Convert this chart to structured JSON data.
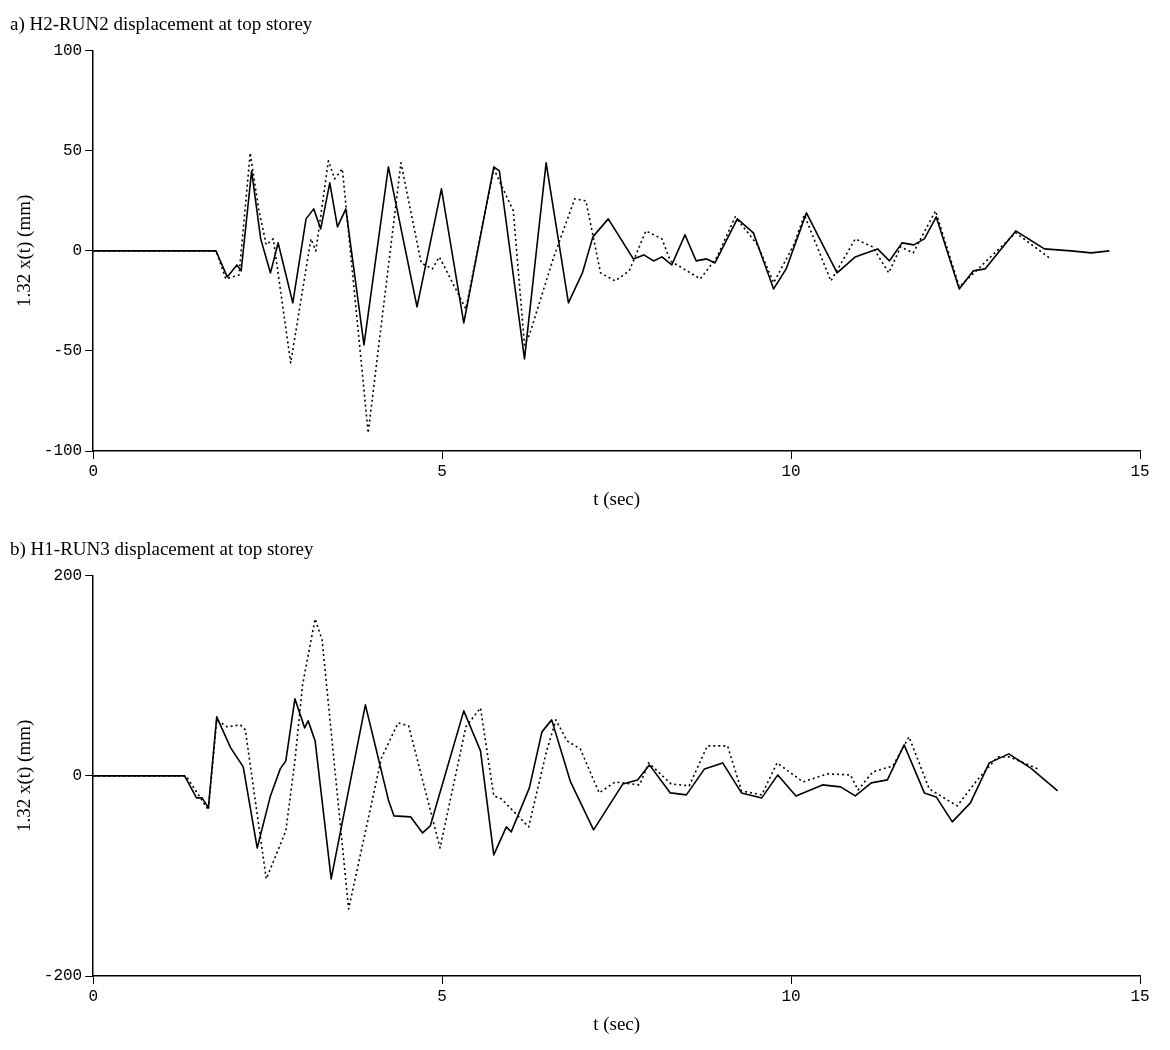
{
  "chart_data": [
    {
      "type": "line",
      "title": "a) H2-RUN2 displacement at top storey",
      "xlabel": "t (sec)",
      "ylabel": "1.32 x(t) (mm)",
      "xlim": [
        0,
        15
      ],
      "xticks": [
        0,
        5,
        10,
        15
      ],
      "ylim": [
        -100,
        100
      ],
      "yticks": [
        -100,
        -50,
        0,
        50,
        100
      ],
      "grid": false,
      "legend": false,
      "marker": "none",
      "series": [
        {
          "color": "#000000",
          "line_style": "solid",
          "x": [
            0,
            0.5,
            1,
            1.5,
            1.76,
            1.92,
            2.06,
            2.12,
            2.27,
            2.4,
            2.54,
            2.65,
            2.86,
            3.05,
            3.16,
            3.26,
            3.39,
            3.5,
            3.62,
            3.88,
            4.23,
            4.64,
            4.99,
            5.31,
            5.74,
            5.82,
            6.18,
            6.49,
            6.81,
            7.01,
            7.16,
            7.38,
            7.74,
            7.89,
            8.03,
            8.15,
            8.29,
            8.48,
            8.64,
            8.79,
            8.91,
            9.23,
            9.46,
            9.75,
            9.93,
            10.22,
            10.66,
            10.92,
            11.24,
            11.41,
            11.59,
            11.76,
            11.91,
            12.08,
            12.41,
            12.61,
            12.78,
            13.22,
            13.63,
            14.01,
            14.3,
            14.56
          ],
          "values": [
            0,
            0,
            0,
            0,
            0,
            -13,
            -7,
            -10,
            40,
            6,
            -11,
            4,
            -26,
            16,
            21,
            11,
            34,
            12,
            21,
            -47,
            42,
            -28,
            31,
            -36,
            42,
            40,
            -54,
            44,
            -26,
            -11,
            7,
            16,
            -4,
            -2,
            -5,
            -3,
            -7,
            8,
            -5,
            -4,
            -6,
            16,
            9,
            -19,
            -9,
            19,
            -11,
            -3,
            1,
            -5,
            4,
            3,
            6,
            17,
            -19,
            -10,
            -9,
            10,
            1,
            0,
            -1,
            0
          ]
        },
        {
          "color": "#000000",
          "line_style": "dotted",
          "x": [
            0,
            1,
            1.76,
            1.9,
            2.09,
            2.25,
            2.37,
            2.48,
            2.58,
            2.83,
            3.12,
            3.19,
            3.37,
            3.46,
            3.57,
            3.94,
            4.41,
            4.7,
            4.86,
            4.96,
            5.34,
            5.74,
            6.02,
            6.18,
            6.25,
            6.6,
            6.9,
            7.06,
            7.27,
            7.48,
            7.68,
            7.92,
            8.15,
            8.27,
            8.7,
            8.94,
            9.2,
            9.52,
            9.75,
            10.04,
            10.19,
            10.57,
            10.92,
            11.17,
            11.4,
            11.57,
            11.75,
            12.07,
            12.41,
            13.22,
            13.72
          ],
          "values": [
            0,
            0,
            0,
            -14,
            -12,
            49,
            21,
            3,
            6,
            -56,
            6,
            0,
            45,
            36,
            41,
            -91,
            44,
            -6,
            -9,
            -3,
            -29,
            41,
            20,
            -47,
            -42,
            -3,
            26,
            25,
            -11,
            -15,
            -10,
            10,
            6,
            -5,
            -14,
            -3,
            17,
            3,
            -16,
            3,
            18,
            -15,
            6,
            2,
            -11,
            2,
            -1,
            20,
            -18,
            9,
            -4
          ]
        }
      ]
    },
    {
      "type": "line",
      "title": "b) H1-RUN3 displacement at top storey",
      "xlabel": "t (sec)",
      "ylabel": "1.32 x(t) (mm)",
      "xlim": [
        0,
        15
      ],
      "xticks": [
        0,
        5,
        10,
        15
      ],
      "ylim": [
        -200,
        200
      ],
      "yticks": [
        -200,
        0,
        200
      ],
      "grid": false,
      "legend": false,
      "marker": "none",
      "series": [
        {
          "color": "#000000",
          "line_style": "solid",
          "x": [
            0,
            1,
            1.31,
            1.48,
            1.56,
            1.65,
            1.77,
            1.97,
            2.15,
            2.35,
            2.54,
            2.68,
            2.76,
            2.89,
            3.03,
            3.08,
            3.18,
            3.41,
            3.9,
            4.23,
            4.31,
            4.55,
            4.72,
            4.83,
            5.31,
            5.55,
            5.74,
            5.92,
            5.99,
            6.25,
            6.43,
            6.57,
            6.84,
            7.17,
            7.59,
            7.8,
            7.97,
            8.27,
            8.5,
            8.76,
            9.02,
            9.29,
            9.58,
            9.81,
            10.07,
            10.45,
            10.71,
            10.92,
            11.15,
            11.38,
            11.62,
            11.91,
            12.08,
            12.31,
            12.57,
            12.84,
            13.12,
            13.43,
            13.82
          ],
          "values": [
            0,
            0,
            0,
            -22,
            -22,
            -32,
            59,
            28,
            9,
            -72,
            -20,
            7,
            15,
            77,
            48,
            55,
            35,
            -103,
            71,
            -24,
            -40,
            -41,
            -57,
            -50,
            65,
            25,
            -79,
            -51,
            -56,
            -12,
            44,
            56,
            -6,
            -54,
            -8,
            -4,
            11,
            -17,
            -19,
            7,
            13,
            -17,
            -22,
            1,
            -20,
            -9,
            -11,
            -20,
            -7,
            -4,
            31,
            -17,
            -21,
            -46,
            -27,
            13,
            22,
            8,
            -15
          ]
        },
        {
          "color": "#000000",
          "line_style": "dotted",
          "x": [
            0,
            1,
            1.33,
            1.65,
            1.77,
            1.92,
            2.11,
            2.18,
            2.48,
            2.76,
            2.89,
            3.0,
            3.18,
            3.28,
            3.66,
            4.13,
            4.37,
            4.52,
            4.97,
            5.34,
            5.55,
            5.74,
            5.85,
            6.24,
            6.49,
            6.63,
            6.79,
            6.98,
            7.25,
            7.48,
            7.83,
            7.96,
            8.28,
            8.54,
            8.8,
            9.09,
            9.29,
            9.58,
            9.8,
            10.17,
            10.52,
            10.85,
            10.96,
            11.17,
            11.46,
            11.69,
            11.98,
            12.38,
            12.67,
            12.96,
            13.13,
            13.57
          ],
          "values": [
            0,
            0,
            0,
            -34,
            56,
            49,
            51,
            46,
            -103,
            -55,
            15,
            91,
            157,
            136,
            -133,
            18,
            53,
            50,
            -72,
            49,
            68,
            -20,
            -23,
            -51,
            23,
            56,
            35,
            27,
            -17,
            -6,
            -9,
            13,
            -8,
            -10,
            30,
            30,
            -15,
            -19,
            13,
            -6,
            2,
            1,
            -14,
            4,
            10,
            39,
            -13,
            -30,
            -4,
            19,
            19,
            6
          ]
        }
      ]
    }
  ]
}
